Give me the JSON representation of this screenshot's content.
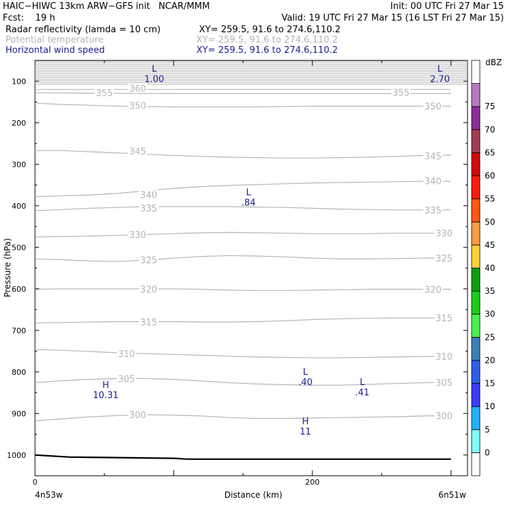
{
  "header": {
    "left_line1": "HAIC−HIWC 13km ARW−GFS init   NCAR/MMM",
    "right_line1": "Init: 00 UTC Fri 27 Mar 15",
    "left_line2": "Fcst:    19 h",
    "right_line2": "Valid: 19 UTC Fri 27 Mar 15 (16 LST Fri 27 Mar 15)",
    "field1_name": "Radar reflectivity (lamda = 10 cm)",
    "field1_xy": "XY= 259.5, 91.6 to 274.6,110.2",
    "field2_name": "Potential temperature",
    "field2_xy": "XY= 259.5, 91.6 to 274.6,110.2",
    "field3_name": "Horizontal wind speed",
    "field3_xy": "XY= 259.5, 91.6 to 274.6,110.2"
  },
  "colors": {
    "theta": "#b4b4b4",
    "wind": "#1a1a8c",
    "terrain": "#000000"
  },
  "chart_data": {
    "type": "cross-section",
    "xlabel": "Distance (km)",
    "ylabel": "Pressure (hPa)",
    "x_ticks": [
      0,
      200
    ],
    "x_range": [
      0,
      300
    ],
    "x_end_labels": {
      "left": "4n53w",
      "right": "6n51w"
    },
    "y_ticks": [
      100,
      200,
      300,
      400,
      500,
      600,
      700,
      800,
      900,
      1000
    ],
    "y_range": [
      50,
      1050
    ],
    "colorbar": {
      "unit": "dBZ",
      "levels": [
        0,
        5,
        10,
        15,
        20,
        25,
        30,
        35,
        40,
        45,
        50,
        55,
        60,
        65,
        70,
        75
      ],
      "colors": [
        "#ffffff",
        "#7ffcf8",
        "#22b1f4",
        "#3b3bf4",
        "#2f5fe4",
        "#3c7fb8",
        "#4cf04c",
        "#1ccc1c",
        "#129c12",
        "#fad238",
        "#fa9c44",
        "#fa5a12",
        "#f81c0c",
        "#ce0c0c",
        "#a43c52",
        "#8c2c9c",
        "#b47cbc",
        "#ffffff"
      ]
    },
    "theta_contours": [
      {
        "value": 300,
        "label": "300",
        "x": [
          0,
          20,
          40,
          60,
          80,
          100,
          120,
          140,
          160,
          180,
          200,
          220,
          240,
          260,
          280,
          300
        ],
        "y": [
          918,
          913,
          908,
          905,
          903,
          904,
          906,
          910,
          912,
          912,
          911,
          910,
          909,
          908,
          906,
          905
        ]
      },
      {
        "value": 305,
        "label": "305",
        "x": [
          0,
          20,
          40,
          60,
          80,
          100,
          120,
          140,
          160,
          180,
          200,
          220,
          240,
          260,
          280,
          300
        ],
        "y": [
          826,
          821,
          818,
          816,
          816,
          818,
          822,
          826,
          829,
          831,
          832,
          832,
          830,
          828,
          826,
          825
        ]
      },
      {
        "value": 310,
        "label": "310",
        "x": [
          0,
          20,
          40,
          60,
          80,
          100,
          120,
          140,
          160,
          180,
          200,
          220,
          240,
          260,
          280,
          300
        ],
        "y": [
          746,
          748,
          751,
          754,
          756,
          758,
          760,
          762,
          764,
          765,
          766,
          766,
          765,
          764,
          763,
          762
        ]
      },
      {
        "value": 315,
        "label": "315",
        "x": [
          0,
          20,
          40,
          60,
          80,
          100,
          120,
          140,
          160,
          180,
          200,
          220,
          240,
          260,
          280,
          300
        ],
        "y": [
          682,
          681,
          680,
          679,
          679,
          679,
          680,
          680,
          679,
          677,
          674,
          672,
          671,
          670,
          670,
          670
        ]
      },
      {
        "value": 320,
        "label": "320",
        "x": [
          0,
          20,
          40,
          60,
          80,
          100,
          120,
          140,
          160,
          180,
          200,
          220,
          240,
          260,
          280,
          300
        ],
        "y": [
          601,
          600,
          600,
          600,
          600,
          600,
          601,
          603,
          604,
          604,
          603,
          602,
          601,
          601,
          601,
          601
        ]
      },
      {
        "value": 325,
        "label": "325",
        "x": [
          0,
          20,
          40,
          60,
          80,
          100,
          120,
          140,
          160,
          180,
          200,
          220,
          240,
          260,
          280,
          300
        ],
        "y": [
          528,
          530,
          533,
          534,
          531,
          526,
          522,
          520,
          521,
          523,
          526,
          528,
          528,
          527,
          526,
          526
        ]
      },
      {
        "value": 330,
        "label": "330",
        "x": [
          0,
          20,
          40,
          60,
          80,
          100,
          120,
          140,
          160,
          180,
          200,
          220,
          240,
          260,
          280,
          300
        ],
        "y": [
          475,
          474,
          473,
          471,
          469,
          467,
          465,
          464,
          465,
          466,
          467,
          467,
          467,
          466,
          466,
          466
        ]
      },
      {
        "value": 335,
        "label": "335",
        "x": [
          0,
          20,
          40,
          60,
          80,
          100,
          120,
          140,
          160,
          180,
          200,
          220,
          240,
          260,
          280,
          300
        ],
        "y": [
          412,
          409,
          406,
          404,
          402,
          402,
          402,
          402,
          403,
          404,
          406,
          408,
          409,
          410,
          410,
          410
        ]
      },
      {
        "value": 340,
        "label": "340",
        "x": [
          0,
          20,
          40,
          60,
          80,
          100,
          120,
          140,
          160,
          180,
          200,
          220,
          240,
          260,
          280,
          300
        ],
        "y": [
          378,
          376,
          374,
          370,
          364,
          358,
          354,
          351,
          349,
          347,
          345,
          344,
          343,
          342,
          341,
          341
        ]
      },
      {
        "value": 345,
        "label": "345",
        "x": [
          0,
          20,
          40,
          60,
          80,
          100,
          120,
          140,
          160,
          180,
          200,
          220,
          240,
          260,
          280,
          300
        ],
        "y": [
          267,
          267,
          270,
          273,
          276,
          279,
          281,
          283,
          284,
          285,
          285,
          284,
          283,
          281,
          279,
          278
        ]
      },
      {
        "value": 350,
        "label": "350",
        "x": [
          0,
          20,
          40,
          60,
          80,
          100,
          120,
          140,
          160,
          180,
          200,
          220,
          240,
          260,
          280,
          300
        ],
        "y": [
          153,
          156,
          158,
          160,
          161,
          162,
          162,
          162,
          162,
          161,
          160,
          160,
          160,
          160,
          160,
          160
        ]
      },
      {
        "value": 355,
        "label": "355",
        "x": [
          0,
          50,
          100,
          150,
          200,
          250,
          300
        ],
        "y": [
          128,
          129,
          130,
          130,
          130,
          130,
          130
        ]
      },
      {
        "value": 360,
        "label": "360",
        "x": [
          0,
          50,
          100,
          150,
          200,
          250,
          300
        ],
        "y": [
          120,
          120,
          120,
          120,
          120,
          120,
          120
        ]
      }
    ],
    "theta_labels": [
      {
        "text": "355",
        "x": 50,
        "y": 128
      },
      {
        "text": "360",
        "x": 74,
        "y": 117
      },
      {
        "text": "350",
        "x": 74,
        "y": 158
      },
      {
        "text": "345",
        "x": 74,
        "y": 268
      },
      {
        "text": "340",
        "x": 82,
        "y": 373
      },
      {
        "text": "335",
        "x": 82,
        "y": 405
      },
      {
        "text": "330",
        "x": 74,
        "y": 469
      },
      {
        "text": "325",
        "x": 82,
        "y": 530
      },
      {
        "text": "320",
        "x": 82,
        "y": 600
      },
      {
        "text": "315",
        "x": 82,
        "y": 680
      },
      {
        "text": "310",
        "x": 66,
        "y": 756
      },
      {
        "text": "305",
        "x": 66,
        "y": 816
      },
      {
        "text": "300",
        "x": 74,
        "y": 903
      },
      {
        "text": "355",
        "x": 264,
        "y": 127
      },
      {
        "text": "350",
        "x": 287,
        "y": 160
      },
      {
        "text": "345",
        "x": 287,
        "y": 280
      },
      {
        "text": "340",
        "x": 287,
        "y": 340
      },
      {
        "text": "335",
        "x": 287,
        "y": 410
      },
      {
        "text": "330",
        "x": 295,
        "y": 466
      },
      {
        "text": "325",
        "x": 295,
        "y": 526
      },
      {
        "text": "320",
        "x": 287,
        "y": 601
      },
      {
        "text": "315",
        "x": 295,
        "y": 670
      },
      {
        "text": "310",
        "x": 295,
        "y": 762
      },
      {
        "text": "305",
        "x": 295,
        "y": 825
      },
      {
        "text": "300",
        "x": 295,
        "y": 905
      }
    ],
    "wind_extrema": [
      {
        "type": "L",
        "value": "1.00",
        "x": 86,
        "y": 82
      },
      {
        "type": "L",
        "value": "2.70",
        "x": 292,
        "y": 82
      },
      {
        "type": "L",
        "value": ".84",
        "x": 154,
        "y": 380
      },
      {
        "type": "L",
        "value": ".40",
        "x": 195,
        "y": 812
      },
      {
        "type": "L",
        "value": ".41",
        "x": 236,
        "y": 837
      },
      {
        "type": "H",
        "value": "10.31",
        "x": 51,
        "y": 843
      },
      {
        "type": "H",
        "value": "11",
        "x": 195,
        "y": 931
      }
    ],
    "terrain_surface": {
      "x": [
        0,
        10,
        25,
        50,
        75,
        100,
        110,
        125,
        150,
        200,
        250,
        300
      ],
      "y": [
        1000,
        1002,
        1005,
        1006,
        1007,
        1008,
        1010,
        1010,
        1010,
        1010,
        1010,
        1010
      ]
    }
  }
}
